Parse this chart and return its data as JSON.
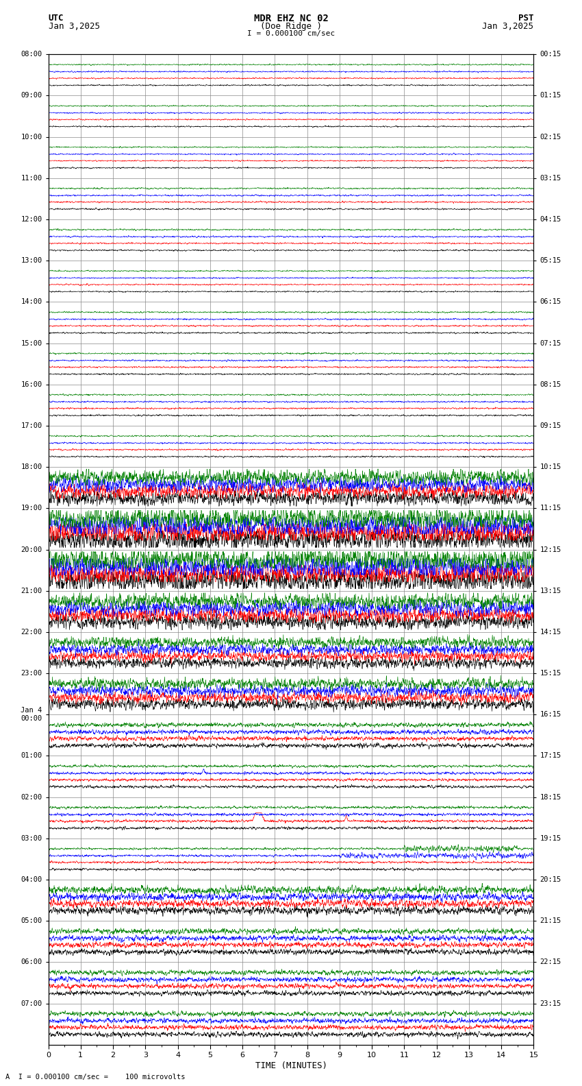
{
  "title_line1": "MDR EHZ NC 02",
  "title_line2": "(Doe Ridge )",
  "scale_text": "I = 0.000100 cm/sec",
  "bottom_text": "A  I = 0.000100 cm/sec =    100 microvolts",
  "utc_label": "UTC",
  "utc_date": "Jan 3,2025",
  "pst_label": "PST",
  "pst_date": "Jan 3,2025",
  "xlabel": "TIME (MINUTES)",
  "bg_color": "#ffffff",
  "trace_colors": [
    "#000000",
    "#ff0000",
    "#0000ff",
    "#008000"
  ],
  "grid_color": "#888888",
  "left_times_utc": [
    "08:00",
    "09:00",
    "10:00",
    "11:00",
    "12:00",
    "13:00",
    "14:00",
    "15:00",
    "16:00",
    "17:00",
    "18:00",
    "19:00",
    "20:00",
    "21:00",
    "22:00",
    "23:00",
    "Jan 4\n00:00",
    "01:00",
    "02:00",
    "03:00",
    "04:00",
    "05:00",
    "06:00",
    "07:00"
  ],
  "right_times_pst": [
    "00:15",
    "01:15",
    "02:15",
    "03:15",
    "04:15",
    "05:15",
    "06:15",
    "07:15",
    "08:15",
    "09:15",
    "10:15",
    "11:15",
    "12:15",
    "13:15",
    "14:15",
    "15:15",
    "16:15",
    "17:15",
    "18:15",
    "19:15",
    "20:15",
    "21:15",
    "22:15",
    "23:15"
  ],
  "num_hours": 24,
  "minutes": 15,
  "noise_seed": 42,
  "amplitudes": [
    0.06,
    0.06,
    0.06,
    0.07,
    0.07,
    0.06,
    0.07,
    0.07,
    0.07,
    0.07,
    0.35,
    0.55,
    0.55,
    0.35,
    0.25,
    0.25,
    0.25,
    0.12,
    0.12,
    0.1,
    0.35,
    0.25,
    0.22,
    0.22
  ]
}
